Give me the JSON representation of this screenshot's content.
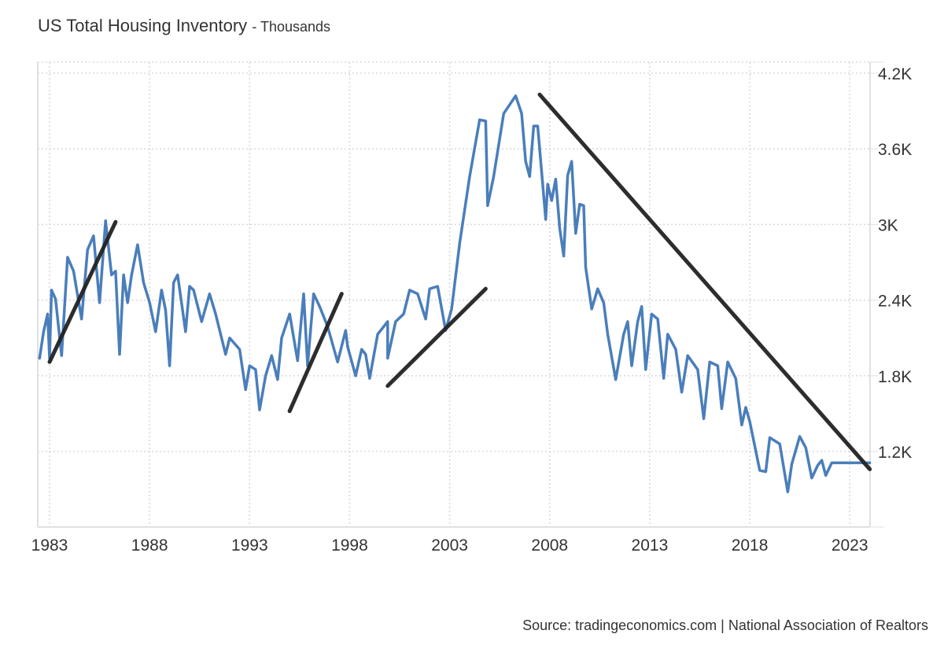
{
  "header": {
    "title": "US Total Housing Inventory",
    "subtitle": "- Thousands"
  },
  "footer": {
    "source": "Source: tradingeconomics.com | National Association of Realtors"
  },
  "colors": {
    "series": "#4a7ebb",
    "trendlines": "#222222",
    "grid": "#d8d8d8",
    "axis": "#e0e0e0"
  },
  "chart_data": {
    "type": "line",
    "title": "US Total Housing Inventory - Thousands",
    "xlabel": "",
    "ylabel": "",
    "xlim": [
      1982.5,
      2024.1
    ],
    "ylim": [
      600,
      4300
    ],
    "y_axis_position": "right",
    "grid": true,
    "x_ticks": [
      1983,
      1988,
      1993,
      1998,
      2003,
      2008,
      2013,
      2018,
      2023
    ],
    "x_tick_labels": [
      "1983",
      "1988",
      "1993",
      "1998",
      "2003",
      "2008",
      "2013",
      "2018",
      "2023"
    ],
    "y_ticks": [
      1200,
      1800,
      2400,
      3000,
      3600,
      4200
    ],
    "y_tick_labels": [
      "1.2K",
      "1.8K",
      "2.4K",
      "3K",
      "3.6K",
      "4.2K"
    ],
    "series": [
      {
        "name": "US Total Housing Inventory",
        "x": [
          1982.5,
          1982.7,
          1982.9,
          1983.0,
          1983.1,
          1983.3,
          1983.6,
          1983.9,
          1984.2,
          1984.6,
          1984.9,
          1985.2,
          1985.5,
          1985.8,
          1986.1,
          1986.3,
          1986.5,
          1986.7,
          1986.9,
          1987.1,
          1987.4,
          1987.7,
          1988.0,
          1988.3,
          1988.6,
          1988.8,
          1989.0,
          1989.2,
          1989.4,
          1989.8,
          1990.0,
          1990.2,
          1990.6,
          1991.0,
          1991.3,
          1991.8,
          1992.0,
          1992.5,
          1992.8,
          1993.0,
          1993.3,
          1993.5,
          1993.8,
          1994.1,
          1994.4,
          1994.6,
          1995.0,
          1995.4,
          1995.7,
          1995.9,
          1996.2,
          1996.5,
          1996.9,
          1997.4,
          1997.8,
          1997.9,
          1998.3,
          1998.6,
          1998.8,
          1999.0,
          1999.4,
          1999.9,
          1999.9,
          2000.3,
          2000.7,
          2001.0,
          2001.4,
          2001.8,
          2002.0,
          2002.4,
          2002.8,
          2003.1,
          2003.5,
          2004.0,
          2004.5,
          2004.8,
          2004.9,
          2005.2,
          2005.7,
          2006.3,
          2006.6,
          2006.8,
          2007.0,
          2007.2,
          2007.4,
          2007.5,
          2007.8,
          2007.9,
          2008.1,
          2008.3,
          2008.5,
          2008.7,
          2008.9,
          2009.1,
          2009.3,
          2009.5,
          2009.7,
          2009.8,
          2010.1,
          2010.4,
          2010.7,
          2010.9,
          2011.3,
          2011.7,
          2011.9,
          2012.1,
          2012.4,
          2012.6,
          2012.8,
          2013.1,
          2013.4,
          2013.7,
          2013.9,
          2014.3,
          2014.6,
          2014.9,
          2015.4,
          2015.7,
          2016.0,
          2016.4,
          2016.6,
          2016.9,
          2017.3,
          2017.6,
          2017.8,
          2018.0,
          2018.5,
          2018.8,
          2019.0,
          2019.5,
          2019.9,
          2020.1,
          2020.5,
          2020.8,
          2021.1,
          2021.4,
          2021.6,
          2021.8,
          2022.1,
          2022.4,
          2022.6,
          2022.8,
          2023.0,
          2023.4,
          2023.7,
          2023.9,
          2024.0
        ],
        "values": [
          1940,
          2150,
          2290,
          1940,
          2480,
          2410,
          1960,
          2740,
          2630,
          2250,
          2800,
          2910,
          2380,
          3030,
          2600,
          2630,
          1970,
          2600,
          2380,
          2600,
          2840,
          2540,
          2380,
          2150,
          2480,
          2320,
          1880,
          2540,
          2600,
          2150,
          2510,
          2480,
          2230,
          2450,
          2290,
          1970,
          2100,
          2010,
          1690,
          1880,
          1850,
          1530,
          1800,
          1960,
          1770,
          2100,
          2290,
          1920,
          2450,
          1880,
          2450,
          2350,
          2190,
          1910,
          2160,
          2030,
          1800,
          2010,
          1970,
          1780,
          2130,
          2230,
          1940,
          2230,
          2290,
          2480,
          2450,
          2250,
          2490,
          2510,
          2160,
          2330,
          2850,
          3380,
          3830,
          3820,
          3150,
          3380,
          3880,
          4020,
          3880,
          3500,
          3380,
          3780,
          3780,
          3600,
          3040,
          3320,
          3190,
          3360,
          2970,
          2750,
          3390,
          3500,
          2930,
          3160,
          3150,
          2660,
          2330,
          2490,
          2380,
          2130,
          1770,
          2130,
          2230,
          1880,
          2230,
          2350,
          1850,
          2290,
          2250,
          1780,
          2130,
          2010,
          1670,
          1960,
          1850,
          1460,
          1910,
          1880,
          1540,
          1910,
          1780,
          1410,
          1550,
          1440,
          1050,
          1040,
          1310,
          1260,
          880,
          1100,
          1320,
          1230,
          990,
          1090,
          1130,
          1010,
          1110,
          1110,
          1110,
          1110,
          1110,
          1110,
          1110,
          1110,
          1110
        ]
      }
    ],
    "trendlines": [
      {
        "name": "trend-1983-1986",
        "from": [
          1983.0,
          1910
        ],
        "to": [
          1986.3,
          3020
        ]
      },
      {
        "name": "trend-1995-1997",
        "from": [
          1995.0,
          1520
        ],
        "to": [
          1997.6,
          2450
        ]
      },
      {
        "name": "trend-2000-2005",
        "from": [
          1999.9,
          1720
        ],
        "to": [
          2004.8,
          2490
        ]
      },
      {
        "name": "trend-2007-2024",
        "from": [
          2007.5,
          4030
        ],
        "to": [
          2024.0,
          1060
        ]
      }
    ]
  }
}
